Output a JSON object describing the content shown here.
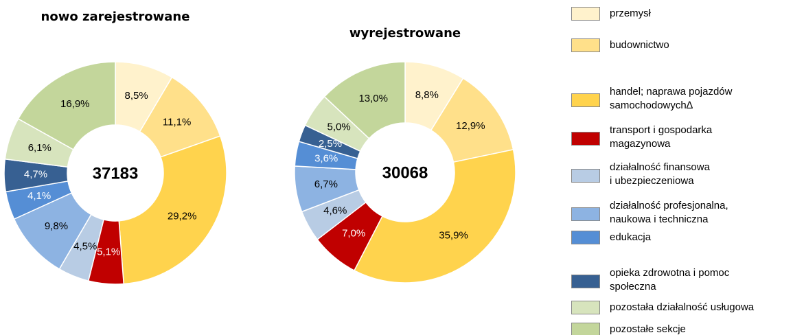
{
  "legend": {
    "labels": [
      "przemysł",
      "budownictwo",
      "handel; naprawa pojazdów\nsamochodowych∆",
      "transport i gospodarka\nmagazynowa",
      "działalność finansowa\ni ubezpieczeniowa",
      "działalność profesjonalna,\nnaukowa i techniczna",
      "edukacja",
      "opieka zdrowotna i pomoc\nspołeczna",
      "pozostała działalność usługowa",
      "pozostałe sekcje"
    ],
    "colors": [
      "#fff2cc",
      "#ffe08a",
      "#ffd34d",
      "#c00000",
      "#b8cce4",
      "#8db3e2",
      "#558ed5",
      "#376092",
      "#d7e4bd",
      "#c3d69b"
    ]
  },
  "chart_data": [
    {
      "type": "pie",
      "title": "nowo zarejestrowane",
      "total": 37183,
      "values": [
        8.5,
        11.1,
        29.2,
        5.1,
        4.5,
        9.8,
        4.1,
        4.7,
        6.1,
        16.9
      ],
      "value_labels": [
        "8,5%",
        "11,1%",
        "29,2%",
        "5,1%",
        "4,5%",
        "9,8%",
        "4,1%",
        "4,7%",
        "6,1%",
        "16,9%"
      ]
    },
    {
      "type": "pie",
      "title": "wyrejestrowane",
      "total": 30068,
      "values": [
        8.8,
        12.9,
        35.9,
        7.0,
        4.6,
        6.7,
        3.6,
        2.5,
        5.0,
        13.0
      ],
      "value_labels": [
        "8,8%",
        "12,9%",
        "35,9%",
        "7,0%",
        "4,6%",
        "6,7%",
        "3,6%",
        "2,5%",
        "5,0%",
        "13,0%"
      ]
    }
  ]
}
